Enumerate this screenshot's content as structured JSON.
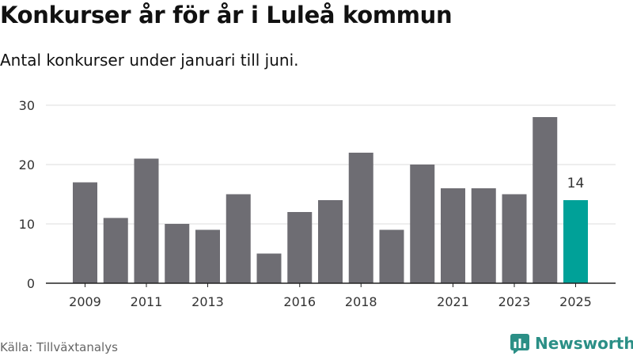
{
  "header": {
    "title": "Konkurser år för år i Luleå kommun",
    "subtitle": "Antal konkurser under januari till juni."
  },
  "footer": {
    "source": "Källa: Tillväxtanalys",
    "brand": "Newsworthy"
  },
  "colors": {
    "bar": "#6e6d73",
    "highlight": "#00a198",
    "grid": "#dddddd",
    "axis": "#222222",
    "text": "#333333",
    "brand": "#2b8f86"
  },
  "chart_data": {
    "type": "bar",
    "categories": [
      "2009",
      "2010",
      "2011",
      "2012",
      "2013",
      "2014",
      "2015",
      "2016",
      "2017",
      "2018",
      "2019",
      "2020",
      "2021",
      "2022",
      "2023",
      "2024",
      "2025"
    ],
    "values": [
      17,
      11,
      21,
      10,
      9,
      15,
      5,
      12,
      14,
      22,
      9,
      20,
      16,
      16,
      15,
      28,
      14
    ],
    "x_tick_labels": [
      "2009",
      "2011",
      "2013",
      "2016",
      "2018",
      "2021",
      "2023",
      "2025"
    ],
    "y_ticks": [
      0,
      10,
      20,
      30
    ],
    "ylim": [
      0,
      30
    ],
    "grid": true,
    "highlight_category": "2025",
    "highlight_label": "14"
  }
}
